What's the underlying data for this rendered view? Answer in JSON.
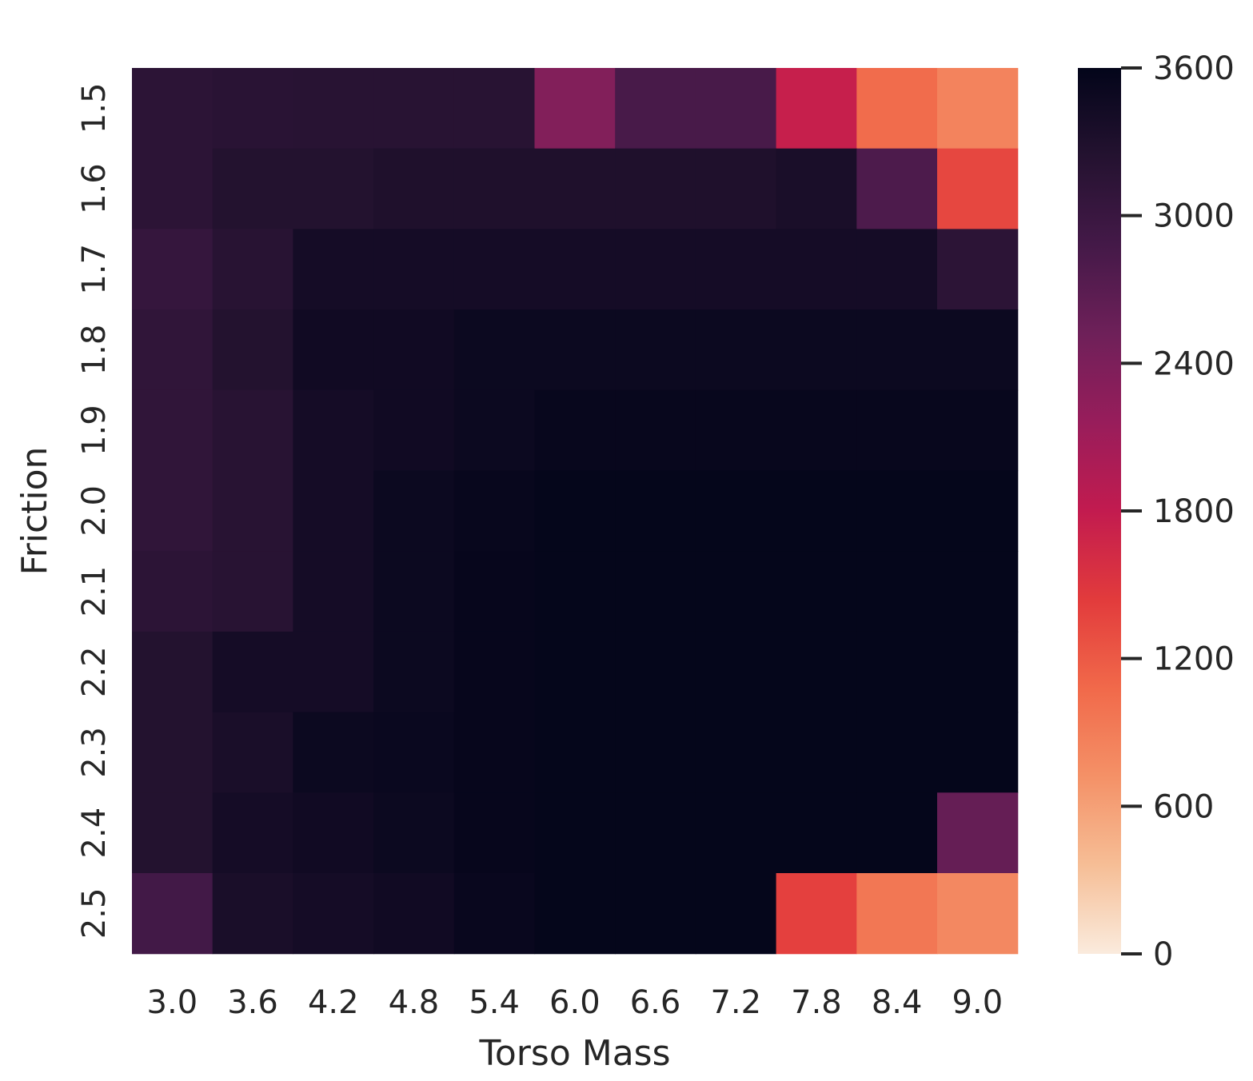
{
  "chart_data": {
    "type": "heatmap",
    "title": "",
    "xlabel": "Torso Mass",
    "ylabel": "Friction",
    "x_categories": [
      "3.0",
      "3.6",
      "4.2",
      "4.8",
      "5.4",
      "6.0",
      "6.6",
      "7.2",
      "7.8",
      "8.4",
      "9.0"
    ],
    "y_categories": [
      "1.5",
      "1.6",
      "1.7",
      "1.8",
      "1.9",
      "2.0",
      "2.1",
      "2.2",
      "2.3",
      "2.4",
      "2.5"
    ],
    "values": [
      [
        3150,
        3180,
        3200,
        3200,
        3200,
        2350,
        2850,
        2850,
        1750,
        1050,
        850
      ],
      [
        3150,
        3250,
        3250,
        3300,
        3300,
        3300,
        3300,
        3300,
        3350,
        2800,
        1350
      ],
      [
        3050,
        3200,
        3400,
        3400,
        3400,
        3400,
        3400,
        3400,
        3400,
        3400,
        3150
      ],
      [
        3100,
        3250,
        3450,
        3450,
        3500,
        3500,
        3500,
        3500,
        3500,
        3500,
        3500
      ],
      [
        3100,
        3200,
        3400,
        3450,
        3500,
        3550,
        3550,
        3550,
        3550,
        3550,
        3550
      ],
      [
        3100,
        3200,
        3400,
        3500,
        3550,
        3580,
        3580,
        3580,
        3580,
        3580,
        3580
      ],
      [
        3150,
        3200,
        3400,
        3500,
        3560,
        3580,
        3580,
        3580,
        3580,
        3580,
        3580
      ],
      [
        3250,
        3400,
        3400,
        3500,
        3560,
        3580,
        3580,
        3580,
        3580,
        3580,
        3580
      ],
      [
        3250,
        3350,
        3500,
        3520,
        3560,
        3580,
        3580,
        3580,
        3580,
        3580,
        3580
      ],
      [
        3250,
        3400,
        3450,
        3500,
        3560,
        3580,
        3580,
        3580,
        3580,
        3580,
        2600
      ],
      [
        2900,
        3350,
        3400,
        3450,
        3540,
        3580,
        3580,
        3580,
        1400,
        950,
        800
      ]
    ],
    "colorbar": {
      "min": 0,
      "max": 3600,
      "ticks": [
        0,
        600,
        1200,
        1800,
        2400,
        3000,
        3600
      ]
    },
    "colormap": "rocket_r",
    "grid": false,
    "legend": "colorbar-right"
  }
}
